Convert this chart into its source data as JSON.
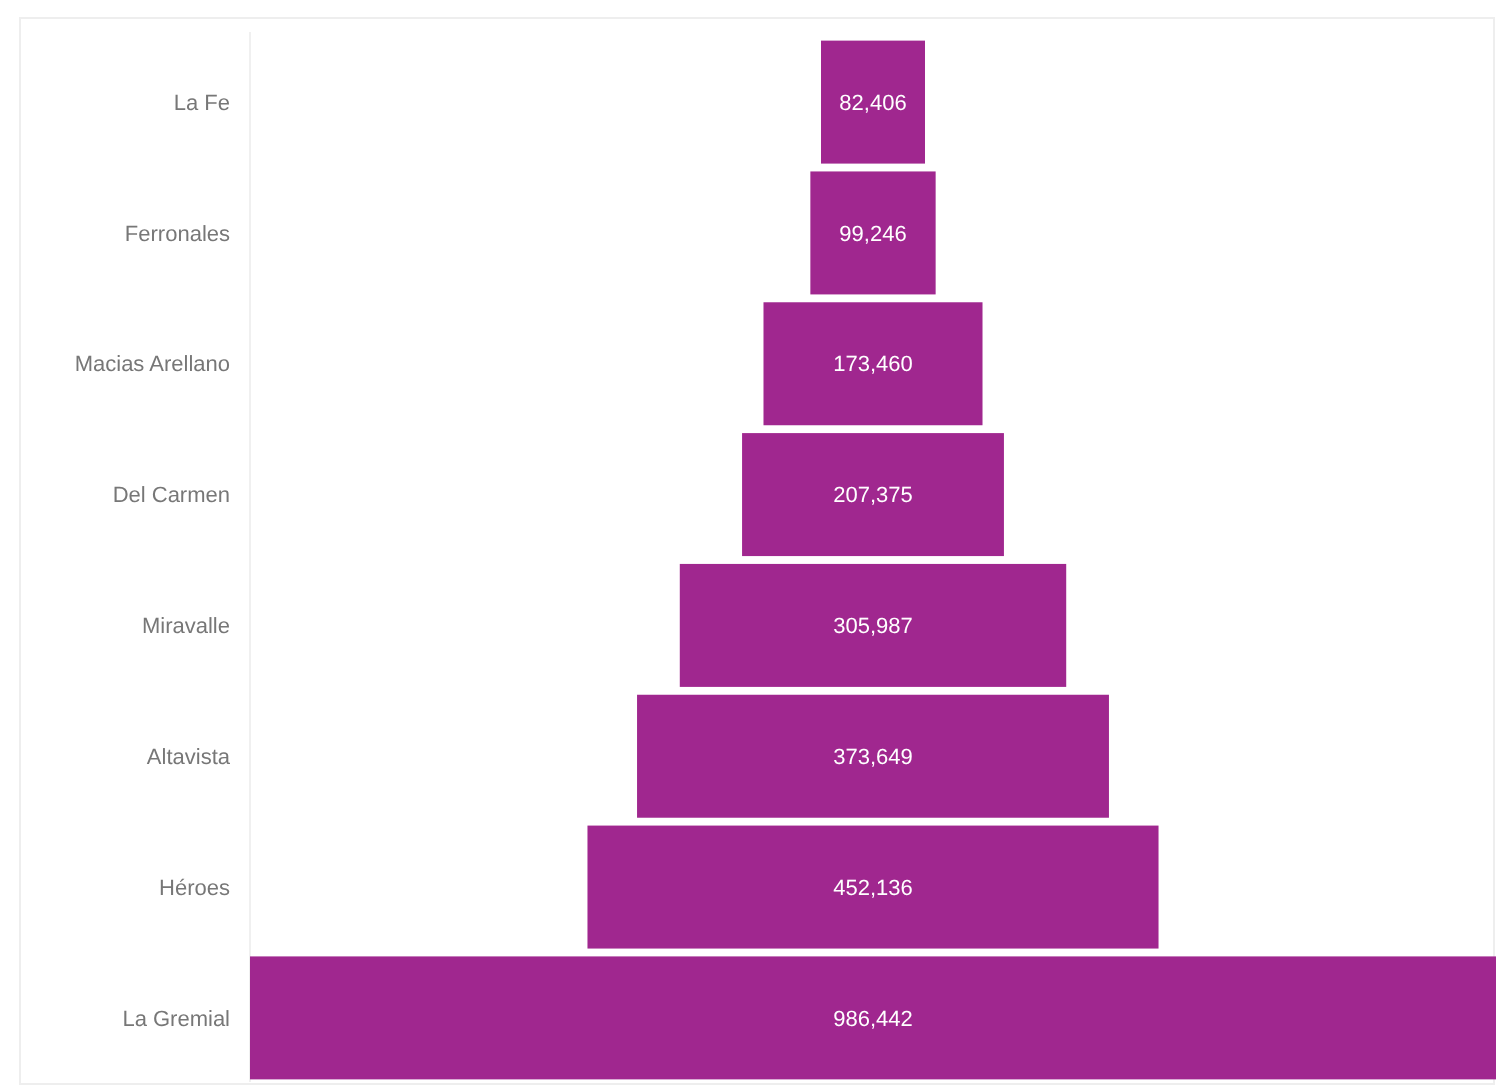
{
  "chart_data": {
    "type": "other",
    "categories": [
      "La Fe",
      "Ferronales",
      "Macias Arellano",
      "Del Carmen",
      "Miravalle",
      "Altavista",
      "Héroes",
      "La Gremial"
    ],
    "values": [
      82406,
      99246,
      173460,
      207375,
      305987,
      373649,
      452136,
      986442
    ],
    "color": "#a0278f",
    "value_labels": [
      "82,406",
      "99,246",
      "173,460",
      "207,375",
      "305,987",
      "373,649",
      "452,136",
      "986,442"
    ]
  }
}
